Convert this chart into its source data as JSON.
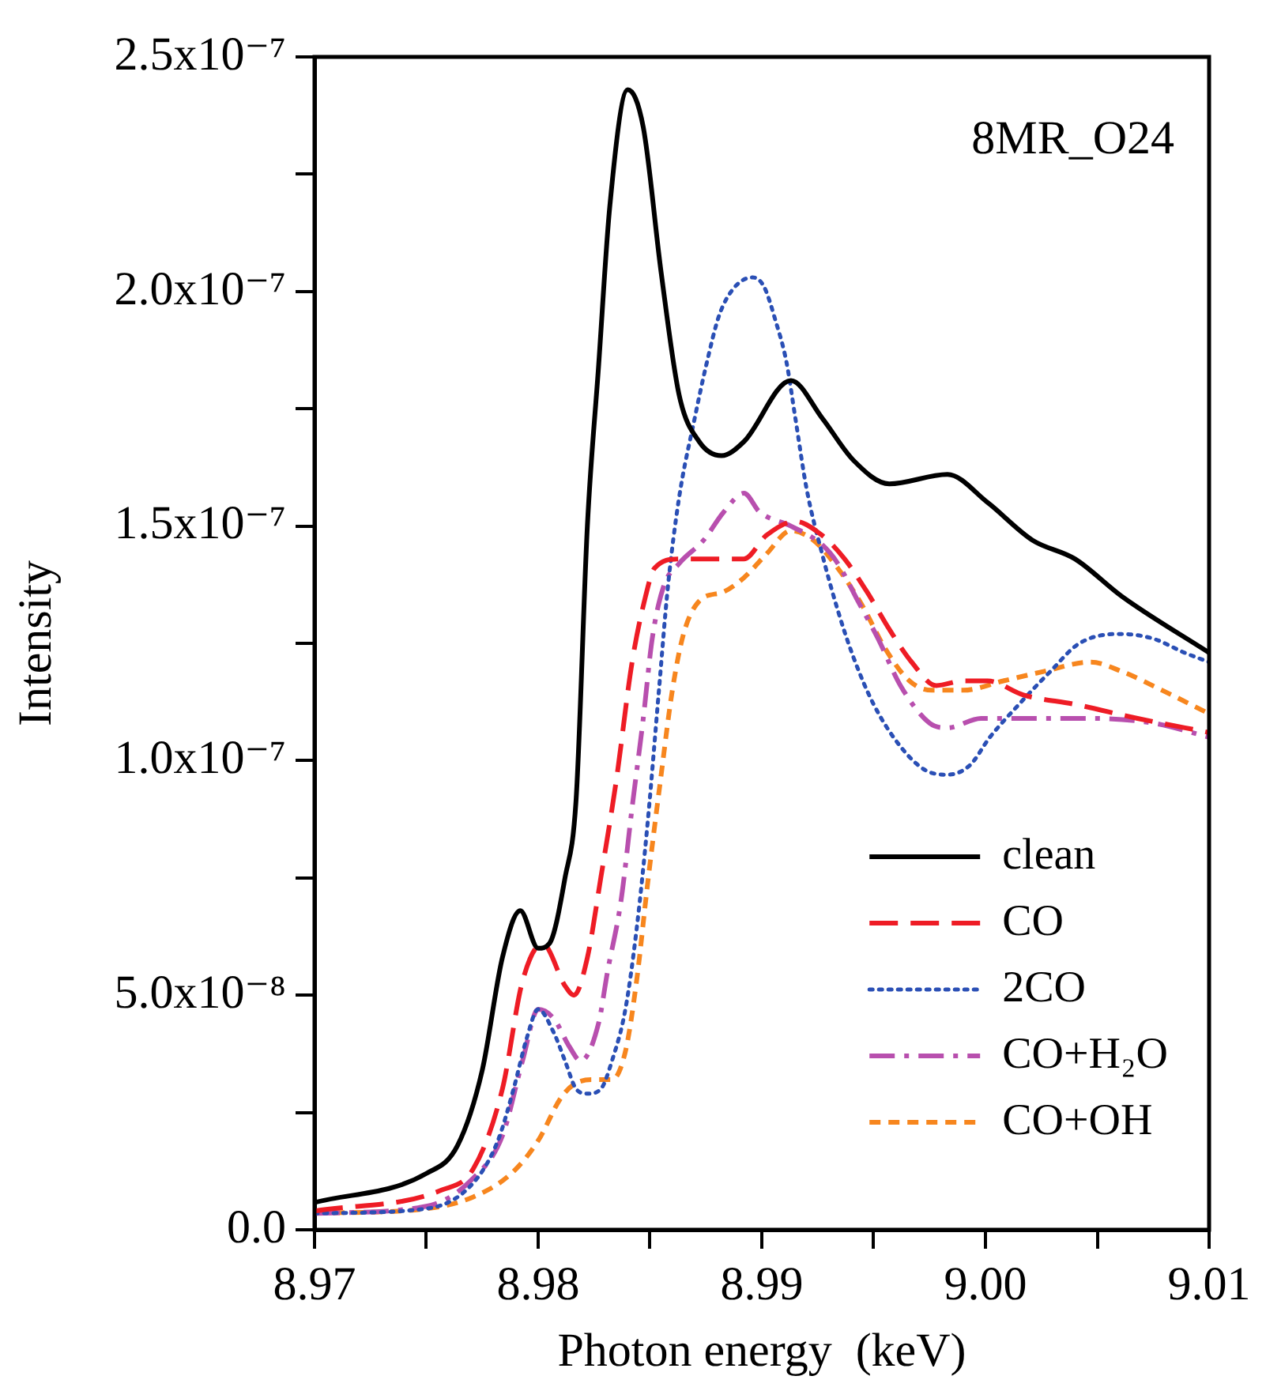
{
  "chart_data": {
    "type": "line",
    "xlabel": "Photon energy  (keV)",
    "ylabel": "Intensity",
    "annotations": [
      "8MR_O24"
    ],
    "xlim": [
      8.97,
      9.01
    ],
    "xticks": [
      {
        "value": 8.97,
        "label": "8.97"
      },
      {
        "value": 8.975,
        "label": null
      },
      {
        "value": 8.98,
        "label": "8.98"
      },
      {
        "value": 8.985,
        "label": null
      },
      {
        "value": 8.99,
        "label": "8.99"
      },
      {
        "value": 8.995,
        "label": null
      },
      {
        "value": 9.0,
        "label": "9.00"
      },
      {
        "value": 9.005,
        "label": null
      },
      {
        "value": 9.01,
        "label": "9.01"
      }
    ],
    "ylim": [
      0,
      2.5e-07
    ],
    "yticks": [
      {
        "value": 0,
        "label": "0.0"
      },
      {
        "value": 2.5e-08,
        "label": null
      },
      {
        "value": 5e-08,
        "label": "5.0x10⁻⁸"
      },
      {
        "value": 7.5e-08,
        "label": null
      },
      {
        "value": 1e-07,
        "label": "1.0x10⁻⁷"
      },
      {
        "value": 1.25e-07,
        "label": null
      },
      {
        "value": 1.5e-07,
        "label": "1.5x10⁻⁷"
      },
      {
        "value": 1.75e-07,
        "label": null
      },
      {
        "value": 2e-07,
        "label": "2.0x10⁻⁷"
      },
      {
        "value": 2.25e-07,
        "label": null
      },
      {
        "value": 2.5e-07,
        "label": "2.5x10⁻⁷"
      }
    ],
    "grid": false,
    "legend": "bottom right",
    "marker": "none",
    "series": [
      {
        "name": "clean",
        "color": "#000000",
        "line_style": "solid",
        "x": [
          8.97,
          8.975,
          8.9764,
          8.9775,
          8.9784,
          8.9792,
          8.98,
          8.9805,
          8.9812,
          8.9817,
          8.9822,
          8.9827,
          8.9832,
          8.984,
          8.9847,
          8.9855,
          8.9863,
          8.9872,
          8.9882,
          8.9892,
          8.9913,
          8.9927,
          8.9941,
          8.9957,
          8.9983,
          9.0001,
          9.0021,
          9.004,
          9.0061,
          9.01
        ],
        "values": [
          5.8e-09,
          1.2e-08,
          1.8e-08,
          3.4e-08,
          5.8e-08,
          6.8e-08,
          6e-08,
          6.1e-08,
          7.5e-08,
          9.2e-08,
          1.5e-07,
          1.84e-07,
          2.18e-07,
          2.43e-07,
          2.35e-07,
          2.04e-07,
          1.78e-07,
          1.68e-07,
          1.65e-07,
          1.68e-07,
          1.81e-07,
          1.73e-07,
          1.64e-07,
          1.59e-07,
          1.61e-07,
          1.55e-07,
          1.47e-07,
          1.43e-07,
          1.35e-07,
          1.23e-07
        ]
      },
      {
        "name": "CO",
        "color": "#ee1c25",
        "line_style": "dashed",
        "x": [
          8.97,
          8.9757,
          8.9771,
          8.9784,
          8.9793,
          8.9802,
          8.9812,
          8.9816,
          8.9822,
          8.9828,
          8.9835,
          8.9842,
          8.9848,
          8.9852,
          8.9863,
          8.9877,
          8.9892,
          8.9902,
          8.9915,
          8.9927,
          8.9937,
          8.9947,
          8.9957,
          8.9967,
          8.9978,
          8.999,
          9.0001,
          9.0017,
          9.004,
          9.0068,
          9.01
        ],
        "values": [
          4e-09,
          8.5e-09,
          1.3e-08,
          3e-08,
          5.3e-08,
          6.1e-08,
          5.2e-08,
          5e-08,
          5.8e-08,
          7.5e-08,
          9.6e-08,
          1.21e-07,
          1.35e-07,
          1.41e-07,
          1.43e-07,
          1.43e-07,
          1.43e-07,
          1.48e-07,
          1.51e-07,
          1.48e-07,
          1.43e-07,
          1.36e-07,
          1.28e-07,
          1.21e-07,
          1.16e-07,
          1.17e-07,
          1.17e-07,
          1.14e-07,
          1.12e-07,
          1.09e-07,
          1.06e-07
        ]
      },
      {
        "name": "2CO",
        "color": "#2a4fb5",
        "line_style": "dotted",
        "x": [
          8.97,
          8.975,
          8.9771,
          8.9782,
          8.9789,
          8.9795,
          8.98,
          8.9807,
          8.9812,
          8.9817,
          8.9822,
          8.9828,
          8.9833,
          8.9839,
          8.9844,
          8.9849,
          8.9854,
          8.9858,
          8.9863,
          8.987,
          8.9875,
          8.9881,
          8.9888,
          8.9896,
          8.9901,
          8.9906,
          8.9911,
          8.9915,
          8.992,
          8.9927,
          8.9934,
          8.9941,
          8.995,
          8.9962,
          8.9973,
          8.9983,
          8.9993,
          9.0002,
          9.0015,
          9.0029,
          9.0042,
          9.006,
          9.0075,
          9.0089,
          9.01
        ],
        "values": [
          3.5e-09,
          4.5e-09,
          1e-08,
          1.9e-08,
          3e-08,
          4.1e-08,
          4.7e-08,
          4.2e-08,
          3.6e-08,
          3e-08,
          2.9e-08,
          3e-08,
          3.6e-08,
          4.7e-08,
          6.4e-08,
          8.7e-08,
          1.15e-07,
          1.37e-07,
          1.56e-07,
          1.73e-07,
          1.84e-07,
          1.95e-07,
          2.01e-07,
          2.03e-07,
          2.01e-07,
          1.94e-07,
          1.85e-07,
          1.73e-07,
          1.58e-07,
          1.44e-07,
          1.32e-07,
          1.22e-07,
          1.12e-07,
          1.03e-07,
          9.8e-08,
          9.7e-08,
          9.9e-08,
          1.05e-07,
          1.12e-07,
          1.19e-07,
          1.25e-07,
          1.27e-07,
          1.26e-07,
          1.23e-07,
          1.21e-07
        ]
      },
      {
        "name": "CO+H₂O",
        "color": "#b84fae",
        "line_style": "dashdot",
        "x": [
          8.97,
          8.975,
          8.9771,
          8.9784,
          8.9793,
          8.98,
          8.9807,
          8.9814,
          8.9819,
          8.9827,
          8.9831,
          8.9837,
          8.9842,
          8.9847,
          8.9851,
          8.9856,
          8.9863,
          8.9874,
          8.9883,
          8.9892,
          8.9899,
          8.9913,
          8.9927,
          8.9934,
          8.9943,
          8.9952,
          8.9962,
          8.9975,
          8.9983,
          8.9998,
          9.0019,
          9.0047,
          9.0075,
          9.01
        ],
        "values": [
          3.5e-09,
          5e-09,
          1.1e-08,
          2e-08,
          3.6e-08,
          4.7e-08,
          4.5e-08,
          3.9e-08,
          3.6e-08,
          4.4e-08,
          5.5e-08,
          7e-08,
          9e-08,
          1.09e-07,
          1.26e-07,
          1.37e-07,
          1.42e-07,
          1.47e-07,
          1.53e-07,
          1.57e-07,
          1.53e-07,
          1.5e-07,
          1.46e-07,
          1.42e-07,
          1.34e-07,
          1.26e-07,
          1.16e-07,
          1.08e-07,
          1.07e-07,
          1.09e-07,
          1.09e-07,
          1.09e-07,
          1.08e-07,
          1.05e-07
        ]
      },
      {
        "name": "CO+OH",
        "color": "#f7861e",
        "line_style": "dashed_short",
        "x": [
          8.97,
          8.975,
          8.9771,
          8.9788,
          8.98,
          8.981,
          8.9816,
          8.9824,
          8.9833,
          8.9839,
          8.9844,
          8.9849,
          8.9855,
          8.986,
          8.9865,
          8.9872,
          8.9883,
          8.9892,
          8.9902,
          8.9913,
          8.9923,
          8.9934,
          8.9945,
          8.9955,
          8.9966,
          8.9976,
          8.999,
          9.0008,
          9.0026,
          9.0047,
          9.0061,
          9.0079,
          9.01
        ],
        "values": [
          3.5e-09,
          4.5e-09,
          7e-09,
          1.2e-08,
          1.9e-08,
          2.8e-08,
          3.1e-08,
          3.2e-08,
          3.2e-08,
          3.8e-08,
          5.3e-08,
          7.4e-08,
          9.7e-08,
          1.15e-07,
          1.27e-07,
          1.34e-07,
          1.36e-07,
          1.39e-07,
          1.44e-07,
          1.49e-07,
          1.47e-07,
          1.41e-07,
          1.33e-07,
          1.24e-07,
          1.17e-07,
          1.15e-07,
          1.15e-07,
          1.17e-07,
          1.19e-07,
          1.21e-07,
          1.19e-07,
          1.15e-07,
          1.1e-07
        ]
      }
    ]
  }
}
